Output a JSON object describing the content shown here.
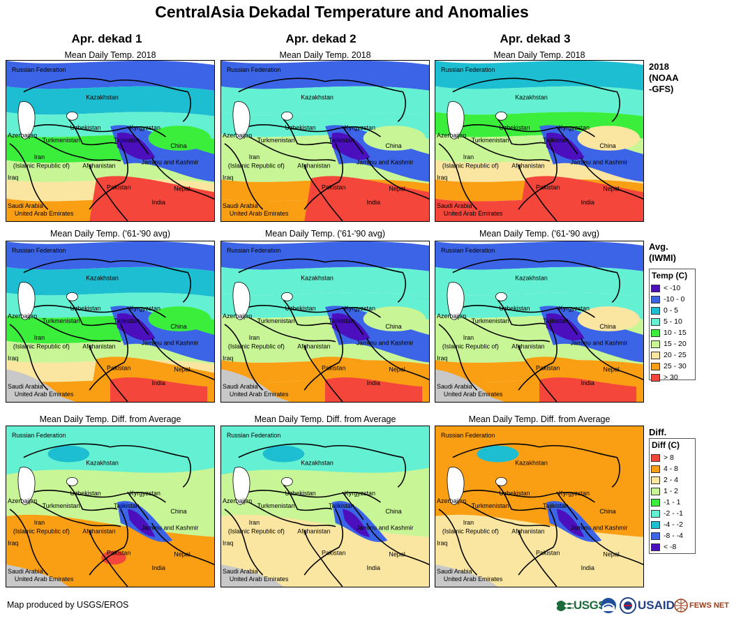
{
  "title": "CentralAsia Dekadal Temperature and Anomalies",
  "columns": [
    "Apr. dekad 1",
    "Apr. dekad 2",
    "Apr. dekad 3"
  ],
  "rows": [
    {
      "caption": "Mean Daily Temp. 2018",
      "label": "2018\n(NOAA\n-GFS)"
    },
    {
      "caption": "Mean Daily Temp. ('61-'90 avg)",
      "label": "Avg.\n(IWMI)"
    },
    {
      "caption": "Mean Daily Temp. Diff. from Average",
      "label": "Diff."
    }
  ],
  "place_labels": {
    "russia": "Russian Federation",
    "kazakhstan": "Kazakhstan",
    "uzbekistan": "Uzbekistan",
    "kyrgyzstan": "Kyrgyzstan",
    "azerbaijan": "Azerbaijan",
    "turkmenistan": "Turkmenistan",
    "tajikistan": "Tajikistan",
    "china": "China",
    "iran1": "Iran",
    "iran2": "(Islamic Republic of)",
    "afghanistan": "Afghanistan",
    "jammu": "Jammu and Kashmir",
    "iraq": "Iraq",
    "pakistan": "Pakistan",
    "india": "India",
    "nepal": "Nepal",
    "saudi": "Saudi Arabia",
    "uae": "United Arab Emirates"
  },
  "legend_temp": {
    "title": "Temp (C)",
    "items": [
      {
        "label": "< -10",
        "color": "#4b0fbe"
      },
      {
        "label": "-10 - 0",
        "color": "#3c64e6"
      },
      {
        "label": "0 - 5",
        "color": "#1ebed2"
      },
      {
        "label": "5 - 10",
        "color": "#64f0d2"
      },
      {
        "label": "10 - 15",
        "color": "#3cee3c"
      },
      {
        "label": "15 - 20",
        "color": "#c8f596"
      },
      {
        "label": "20 - 25",
        "color": "#fae6a0"
      },
      {
        "label": "25 - 30",
        "color": "#fa9f14"
      },
      {
        "label": "> 30",
        "color": "#f5463c"
      }
    ]
  },
  "legend_diff": {
    "title": "Diff (C)",
    "items": [
      {
        "label": "> 8",
        "color": "#f5463c"
      },
      {
        "label": "4 - 8",
        "color": "#fa9f14"
      },
      {
        "label": "2 - 4",
        "color": "#fae6a0"
      },
      {
        "label": "1 - 2",
        "color": "#c8f596"
      },
      {
        "label": "-1 - 1",
        "color": "#3cee3c"
      },
      {
        "label": "-2 - -1",
        "color": "#64f0d2"
      },
      {
        "label": "-4 - -2",
        "color": "#1ebed2"
      },
      {
        "label": "-8 - -4",
        "color": "#3c64e6"
      },
      {
        "label": "< -8",
        "color": "#4b0fbe"
      }
    ]
  },
  "footer_credit": "Map produced by USGS/EROS",
  "logos": {
    "usgs": "USGS",
    "usaid": "USAID",
    "fewsnet": "FEWS NET"
  },
  "colors": {
    "noData": "#c8c8c8"
  }
}
